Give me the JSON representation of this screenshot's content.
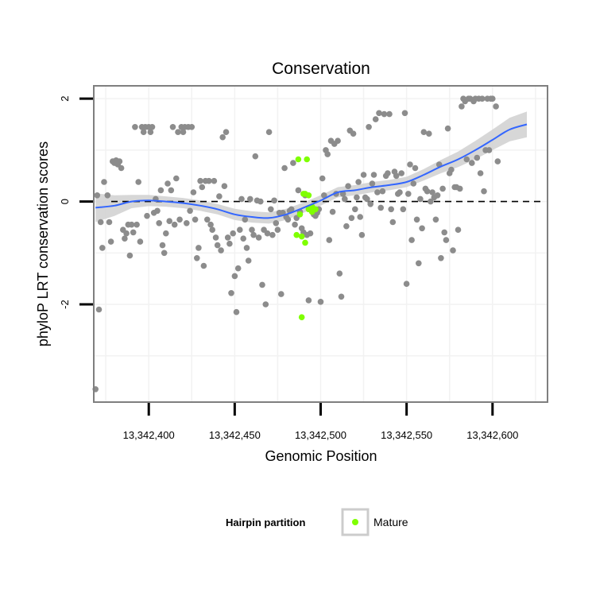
{
  "chart_data": {
    "type": "scatter",
    "title": "Conservation",
    "xlabel": "Genomic Position",
    "ylabel": "phyloP LRT conservation scores",
    "xlim": [
      13342368,
      13342632
    ],
    "ylim": [
      -3.9,
      2.25
    ],
    "x_ticks": [
      13342400,
      13342450,
      13342500,
      13342550,
      13342600
    ],
    "x_tick_labels": [
      "13,342,400",
      "13,342,450",
      "13,342,500",
      "13,342,550",
      "13,342,600"
    ],
    "y_ticks": [
      -2,
      0,
      2
    ],
    "y_tick_labels": [
      "-2",
      "0",
      "2"
    ],
    "grid": true,
    "reference_line": {
      "y": 0,
      "style": "dashed"
    },
    "legend": {
      "title": "Hairpin partition",
      "position": "bottom",
      "entries": [
        {
          "label": "Mature",
          "color": "#7FFF00"
        }
      ]
    },
    "colors": {
      "background_points": "#8c8c8c",
      "mature": "#7FFF00",
      "smooth_line": "#3366FF",
      "ribbon": "#d3d3d3"
    },
    "series": [
      {
        "kind": "other",
        "points": [
          [
            13342369,
            -3.65
          ],
          [
            13342370,
            0.12
          ],
          [
            13342371,
            -2.1
          ],
          [
            13342372,
            -0.4
          ],
          [
            13342373,
            -0.9
          ],
          [
            13342374,
            0.38
          ],
          [
            13342376,
            0.12
          ],
          [
            13342377,
            -0.4
          ],
          [
            13342378,
            -0.78
          ],
          [
            13342379,
            0.78
          ],
          [
            13342380,
            0.75
          ],
          [
            13342381,
            0.8
          ],
          [
            13342382,
            0.72
          ],
          [
            13342383,
            0.78
          ],
          [
            13342384,
            0.65
          ],
          [
            13342385,
            -0.55
          ],
          [
            13342386,
            -0.72
          ],
          [
            13342387,
            -0.62
          ],
          [
            13342388,
            -0.45
          ],
          [
            13342389,
            -1.05
          ],
          [
            13342390,
            -0.45
          ],
          [
            13342391,
            -0.6
          ],
          [
            13342392,
            1.45
          ],
          [
            13342393,
            -0.45
          ],
          [
            13342394,
            0.38
          ],
          [
            13342395,
            -0.78
          ],
          [
            13342396,
            1.45
          ],
          [
            13342397,
            1.35
          ],
          [
            13342398,
            1.45
          ],
          [
            13342399,
            -0.28
          ],
          [
            13342400,
            1.45
          ],
          [
            13342401,
            1.35
          ],
          [
            13342402,
            1.45
          ],
          [
            13342403,
            -0.22
          ],
          [
            13342404,
            0.05
          ],
          [
            13342405,
            -0.18
          ],
          [
            13342406,
            -0.42
          ],
          [
            13342407,
            0.22
          ],
          [
            13342408,
            -0.85
          ],
          [
            13342409,
            -1.0
          ],
          [
            13342410,
            -0.62
          ],
          [
            13342411,
            0.35
          ],
          [
            13342412,
            -0.38
          ],
          [
            13342413,
            0.22
          ],
          [
            13342414,
            1.45
          ],
          [
            13342415,
            -0.45
          ],
          [
            13342416,
            0.45
          ],
          [
            13342417,
            1.35
          ],
          [
            13342418,
            -0.35
          ],
          [
            13342419,
            1.45
          ],
          [
            13342420,
            1.35
          ],
          [
            13342421,
            1.45
          ],
          [
            13342422,
            -0.42
          ],
          [
            13342423,
            1.45
          ],
          [
            13342424,
            -0.18
          ],
          [
            13342425,
            1.45
          ],
          [
            13342426,
            0.18
          ],
          [
            13342427,
            -0.35
          ],
          [
            13342428,
            -1.1
          ],
          [
            13342429,
            -0.9
          ],
          [
            13342430,
            0.4
          ],
          [
            13342431,
            0.28
          ],
          [
            13342432,
            -1.25
          ],
          [
            13342433,
            0.4
          ],
          [
            13342434,
            -0.35
          ],
          [
            13342435,
            0.4
          ],
          [
            13342436,
            -0.45
          ],
          [
            13342437,
            -0.55
          ],
          [
            13342438,
            0.4
          ],
          [
            13342439,
            -0.7
          ],
          [
            13342440,
            -0.85
          ],
          [
            13342441,
            0.1
          ],
          [
            13342442,
            -0.95
          ],
          [
            13342443,
            1.25
          ],
          [
            13342444,
            0.3
          ],
          [
            13342445,
            1.35
          ],
          [
            13342446,
            -0.7
          ],
          [
            13342447,
            -0.82
          ],
          [
            13342448,
            -1.78
          ],
          [
            13342449,
            -0.62
          ],
          [
            13342450,
            -1.45
          ],
          [
            13342451,
            -2.15
          ],
          [
            13342452,
            -1.3
          ],
          [
            13342453,
            -0.55
          ],
          [
            13342454,
            0.05
          ],
          [
            13342455,
            -0.72
          ],
          [
            13342456,
            -0.35
          ],
          [
            13342457,
            -0.9
          ],
          [
            13342458,
            -1.15
          ],
          [
            13342459,
            0.05
          ],
          [
            13342460,
            -0.55
          ],
          [
            13342461,
            -0.65
          ],
          [
            13342462,
            0.88
          ],
          [
            13342463,
            0.02
          ],
          [
            13342464,
            -0.7
          ],
          [
            13342465,
            0.0
          ],
          [
            13342466,
            -1.62
          ],
          [
            13342467,
            -0.55
          ],
          [
            13342468,
            -2.0
          ],
          [
            13342469,
            -0.62
          ],
          [
            13342470,
            1.35
          ],
          [
            13342471,
            -0.15
          ],
          [
            13342472,
            -0.65
          ],
          [
            13342473,
            0.02
          ],
          [
            13342474,
            -0.42
          ],
          [
            13342475,
            -0.55
          ],
          [
            13342476,
            -0.22
          ],
          [
            13342477,
            -1.8
          ],
          [
            13342478,
            -0.22
          ],
          [
            13342479,
            0.65
          ],
          [
            13342480,
            -0.3
          ],
          [
            13342481,
            -0.35
          ],
          [
            13342482,
            -0.18
          ],
          [
            13342483,
            -0.15
          ],
          [
            13342484,
            0.75
          ],
          [
            13342485,
            -0.45
          ],
          [
            13342486,
            -0.32
          ],
          [
            13342487,
            0.22
          ],
          [
            13342488,
            -0.2
          ],
          [
            13342489,
            -0.52
          ],
          [
            13342490,
            -0.6
          ],
          [
            13342491,
            0.12
          ],
          [
            13342492,
            -0.65
          ],
          [
            13342493,
            -1.92
          ],
          [
            13342494,
            -0.62
          ],
          [
            13342495,
            -0.2
          ],
          [
            13342496,
            -0.25
          ],
          [
            13342497,
            -0.28
          ],
          [
            13342498,
            -0.22
          ],
          [
            13342499,
            -0.15
          ],
          [
            13342500,
            -1.95
          ],
          [
            13342501,
            0.45
          ],
          [
            13342502,
            0.12
          ],
          [
            13342503,
            1.0
          ],
          [
            13342504,
            0.92
          ],
          [
            13342505,
            -0.75
          ],
          [
            13342506,
            1.18
          ],
          [
            13342507,
            -0.2
          ],
          [
            13342508,
            1.12
          ],
          [
            13342509,
            0.15
          ],
          [
            13342510,
            1.18
          ],
          [
            13342511,
            -1.4
          ],
          [
            13342512,
            -1.85
          ],
          [
            13342513,
            0.15
          ],
          [
            13342514,
            0.05
          ],
          [
            13342515,
            -0.48
          ],
          [
            13342516,
            0.3
          ],
          [
            13342517,
            1.38
          ],
          [
            13342518,
            -0.32
          ],
          [
            13342519,
            1.32
          ],
          [
            13342520,
            -0.15
          ],
          [
            13342521,
            0.08
          ],
          [
            13342522,
            0.38
          ],
          [
            13342523,
            -0.3
          ],
          [
            13342524,
            -0.65
          ],
          [
            13342525,
            0.52
          ],
          [
            13342526,
            0.08
          ],
          [
            13342527,
            0.05
          ],
          [
            13342528,
            1.45
          ],
          [
            13342529,
            -0.05
          ],
          [
            13342530,
            0.35
          ],
          [
            13342531,
            0.52
          ],
          [
            13342532,
            1.6
          ],
          [
            13342533,
            0.18
          ],
          [
            13342534,
            1.72
          ],
          [
            13342535,
            -0.12
          ],
          [
            13342536,
            0.2
          ],
          [
            13342537,
            1.7
          ],
          [
            13342538,
            0.5
          ],
          [
            13342539,
            0.55
          ],
          [
            13342540,
            1.7
          ],
          [
            13342541,
            -0.15
          ],
          [
            13342542,
            -0.4
          ],
          [
            13342543,
            0.58
          ],
          [
            13342544,
            0.5
          ],
          [
            13342545,
            0.15
          ],
          [
            13342546,
            0.18
          ],
          [
            13342547,
            0.55
          ],
          [
            13342548,
            -0.15
          ],
          [
            13342549,
            1.72
          ],
          [
            13342550,
            -1.6
          ],
          [
            13342551,
            0.15
          ],
          [
            13342552,
            0.72
          ],
          [
            13342553,
            -0.75
          ],
          [
            13342554,
            0.35
          ],
          [
            13342555,
            0.65
          ],
          [
            13342556,
            -0.35
          ],
          [
            13342557,
            -1.2
          ],
          [
            13342558,
            0.05
          ],
          [
            13342559,
            -0.52
          ],
          [
            13342560,
            1.35
          ],
          [
            13342561,
            0.25
          ],
          [
            13342562,
            0.2
          ],
          [
            13342563,
            1.32
          ],
          [
            13342564,
            0.0
          ],
          [
            13342565,
            0.18
          ],
          [
            13342566,
            0.08
          ],
          [
            13342567,
            -0.35
          ],
          [
            13342568,
            0.12
          ],
          [
            13342569,
            0.72
          ],
          [
            13342570,
            -1.1
          ],
          [
            13342571,
            0.25
          ],
          [
            13342572,
            -0.6
          ],
          [
            13342573,
            -0.75
          ],
          [
            13342574,
            1.42
          ],
          [
            13342575,
            0.55
          ],
          [
            13342576,
            0.62
          ],
          [
            13342577,
            -0.95
          ],
          [
            13342578,
            0.28
          ],
          [
            13342579,
            0.28
          ],
          [
            13342580,
            -0.55
          ],
          [
            13342581,
            0.25
          ],
          [
            13342582,
            1.85
          ],
          [
            13342583,
            2.0
          ],
          [
            13342584,
            1.95
          ],
          [
            13342585,
            0.82
          ],
          [
            13342586,
            2.0
          ],
          [
            13342587,
            2.0
          ],
          [
            13342588,
            0.75
          ],
          [
            13342589,
            1.95
          ],
          [
            13342590,
            2.0
          ],
          [
            13342591,
            0.85
          ],
          [
            13342592,
            2.0
          ],
          [
            13342593,
            0.55
          ],
          [
            13342594,
            2.0
          ],
          [
            13342595,
            0.2
          ],
          [
            13342596,
            1.0
          ],
          [
            13342597,
            2.0
          ],
          [
            13342598,
            1.0
          ],
          [
            13342599,
            2.0
          ],
          [
            13342600,
            2.0
          ],
          [
            13342602,
            1.85
          ],
          [
            13342603,
            0.78
          ]
        ]
      },
      {
        "kind": "mature",
        "name": "Mature",
        "points": [
          [
            13342487,
            0.82
          ],
          [
            13342490,
            0.15
          ],
          [
            13342492,
            0.82
          ],
          [
            13342493,
            0.12
          ],
          [
            13342491,
            0.15
          ],
          [
            13342486,
            -0.65
          ],
          [
            13342489,
            -0.68
          ],
          [
            13342491,
            -0.8
          ],
          [
            13342493,
            -0.15
          ],
          [
            13342495,
            -0.1
          ],
          [
            13342497,
            -0.15
          ],
          [
            13342489,
            -2.25
          ],
          [
            13342488,
            -0.25
          ],
          [
            13342495,
            -0.2
          ]
        ]
      }
    ],
    "smooth": {
      "points": [
        [
          13342369,
          -0.12
        ],
        [
          13342380,
          -0.08
        ],
        [
          13342390,
          0.0
        ],
        [
          13342400,
          0.02
        ],
        [
          13342410,
          0.0
        ],
        [
          13342420,
          -0.03
        ],
        [
          13342430,
          -0.08
        ],
        [
          13342440,
          -0.15
        ],
        [
          13342450,
          -0.25
        ],
        [
          13342460,
          -0.3
        ],
        [
          13342470,
          -0.32
        ],
        [
          13342480,
          -0.25
        ],
        [
          13342490,
          -0.12
        ],
        [
          13342500,
          0.02
        ],
        [
          13342510,
          0.18
        ],
        [
          13342520,
          0.22
        ],
        [
          13342530,
          0.28
        ],
        [
          13342540,
          0.32
        ],
        [
          13342550,
          0.38
        ],
        [
          13342560,
          0.52
        ],
        [
          13342570,
          0.68
        ],
        [
          13342580,
          0.82
        ],
        [
          13342590,
          1.0
        ],
        [
          13342600,
          1.2
        ],
        [
          13342610,
          1.4
        ],
        [
          13342620,
          1.5
        ]
      ],
      "se": [
        0.28,
        0.2,
        0.13,
        0.11,
        0.1,
        0.1,
        0.1,
        0.1,
        0.11,
        0.11,
        0.11,
        0.11,
        0.1,
        0.1,
        0.1,
        0.1,
        0.1,
        0.1,
        0.1,
        0.11,
        0.13,
        0.15,
        0.18,
        0.2,
        0.23,
        0.25
      ]
    }
  }
}
